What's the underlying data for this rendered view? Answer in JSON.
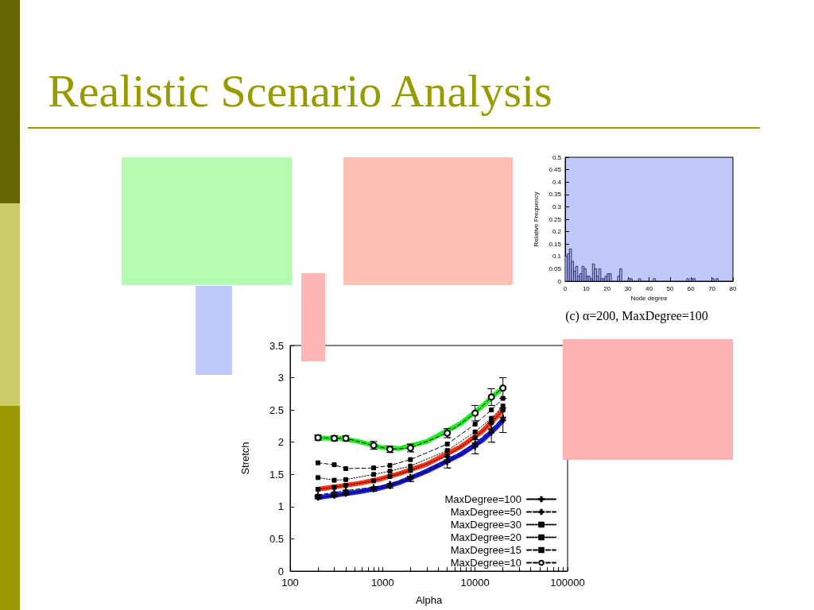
{
  "chart_data": [
    {
      "type": "histogram",
      "title": "Realistic Scenario Analysis",
      "xlabel": "Node degree",
      "ylabel": "Relative Frequency",
      "annotations": [
        "(c) α=200, MaxDegree=100"
      ],
      "color": "#aab4ee",
      "bins": [
        0,
        1,
        2,
        3,
        4,
        5,
        6,
        7,
        8,
        9,
        10,
        11,
        12,
        13,
        14,
        15,
        16,
        17,
        18,
        19,
        20,
        21,
        22,
        23,
        24,
        25,
        26,
        27,
        28,
        29,
        30,
        31,
        32,
        33,
        34,
        35,
        36,
        37,
        38,
        39,
        40,
        41,
        42,
        43,
        44,
        45,
        46,
        47,
        48,
        49,
        50,
        51,
        52,
        53,
        54,
        55,
        56,
        57,
        58,
        59,
        60,
        61,
        62,
        63,
        64,
        65,
        66,
        67,
        68,
        69,
        70,
        71,
        72,
        73
      ],
      "values": [
        0.1,
        0.11,
        0.13,
        0.08,
        0.04,
        0.06,
        0.02,
        0.03,
        0.06,
        0.05,
        0.02,
        0.02,
        0.01,
        0.07,
        0.05,
        0.02,
        0.05,
        0.01,
        0.01,
        0.02,
        0.03,
        0.03,
        0,
        0,
        0,
        0.02,
        0.05,
        0,
        0,
        0,
        0.01,
        0.01,
        0,
        0,
        0,
        0.01,
        0,
        0,
        0,
        0,
        0,
        0,
        0.01,
        0,
        0,
        0,
        0,
        0,
        0,
        0,
        0,
        0,
        0,
        0,
        0,
        0,
        0,
        0,
        0.01,
        0,
        0.01,
        0.01,
        0,
        0,
        0,
        0,
        0,
        0,
        0,
        0,
        0.01,
        0,
        0.01
      ],
      "xlim": [
        0,
        80
      ],
      "xticks": [
        0,
        10,
        20,
        30,
        40,
        50,
        60,
        70,
        80
      ],
      "ylim": [
        0,
        0.5
      ],
      "yticks": [
        0,
        0.05,
        0.1,
        0.15,
        0.2,
        0.25,
        0.3,
        0.35,
        0.4,
        0.45,
        0.5
      ]
    },
    {
      "type": "line",
      "xlabel": "Alpha",
      "ylabel": "Stretch",
      "log": "x",
      "legend": "bottom right",
      "x": [
        200,
        300,
        400,
        800,
        1200,
        2000,
        5000,
        10000,
        15000,
        20000
      ],
      "xlim": [
        100,
        100000
      ],
      "xticks": [
        100,
        1000,
        10000,
        100000
      ],
      "ylim": [
        0,
        3.5
      ],
      "yticks": [
        0,
        0.5,
        1,
        1.5,
        2,
        2.5,
        3,
        3.5
      ],
      "series": [
        {
          "color": "#22ee22",
          "marker": "none",
          "line_style": "solid",
          "x": [
            200,
            250,
            350,
            550,
            950,
            1500,
            3000,
            7000,
            12000,
            17000,
            20000
          ],
          "values": [
            2.07,
            2.06,
            2.06,
            2.01,
            1.92,
            1.9,
            2.01,
            2.29,
            2.56,
            2.76,
            2.84
          ]
        },
        {
          "color": "#ff3311",
          "marker": "none",
          "line_style": "solid",
          "x": [
            200,
            250,
            350,
            550,
            950,
            1500,
            3000,
            7000,
            12000,
            17000,
            20000
          ],
          "values": [
            1.27,
            1.29,
            1.32,
            1.36,
            1.43,
            1.51,
            1.66,
            1.93,
            2.17,
            2.39,
            2.5
          ]
        },
        {
          "color": "#1a1aff",
          "marker": "none",
          "line_style": "solid",
          "x": [
            200,
            250,
            350,
            550,
            950,
            1500,
            3000,
            7000,
            12000,
            17000,
            20000
          ],
          "values": [
            1.14,
            1.16,
            1.19,
            1.23,
            1.29,
            1.37,
            1.55,
            1.81,
            2.03,
            2.23,
            2.34
          ]
        },
        {
          "name": "MaxDegree=100",
          "color": "#000000",
          "marker": "cross",
          "line_style": "solid",
          "values": [
            1.14,
            1.17,
            1.2,
            1.27,
            1.32,
            1.43,
            1.69,
            1.93,
            2.15,
            2.34
          ],
          "errors": [
            0.02,
            0.02,
            0.02,
            0.03,
            0.03,
            0.04,
            0.09,
            0.11,
            0.15,
            0.19
          ]
        },
        {
          "name": "MaxDegree=50",
          "color": "#000000",
          "marker": "cross",
          "line_style": "dashed",
          "values": [
            1.18,
            1.22,
            1.25,
            1.3,
            1.35,
            1.46,
            1.72,
            1.98,
            2.2,
            2.38
          ]
        },
        {
          "name": "MaxDegree=30",
          "color": "#000000",
          "marker": "square",
          "line_style": "dotted",
          "values": [
            1.27,
            1.3,
            1.33,
            1.4,
            1.47,
            1.56,
            1.79,
            2.07,
            2.3,
            2.5
          ]
        },
        {
          "name": "MaxDegree=20",
          "color": "#000000",
          "marker": "square",
          "line_style": "dotted",
          "values": [
            1.45,
            1.41,
            1.42,
            1.5,
            1.55,
            1.63,
            1.87,
            2.16,
            2.37,
            2.56
          ]
        },
        {
          "name": "MaxDegree=15",
          "color": "#000000",
          "marker": "square",
          "line_style": "dashed",
          "values": [
            1.68,
            1.65,
            1.59,
            1.6,
            1.64,
            1.73,
            1.97,
            2.28,
            2.5,
            2.68
          ]
        },
        {
          "name": "MaxDegree=10",
          "color": "#000000",
          "marker": "circle",
          "line_style": "dashed",
          "values": [
            2.07,
            2.06,
            2.06,
            1.95,
            1.89,
            1.91,
            2.14,
            2.45,
            2.7,
            2.84
          ],
          "errors": [
            0.04,
            0.04,
            0.04,
            0.06,
            0.05,
            0.06,
            0.07,
            0.12,
            0.13,
            0.16
          ]
        }
      ]
    }
  ]
}
